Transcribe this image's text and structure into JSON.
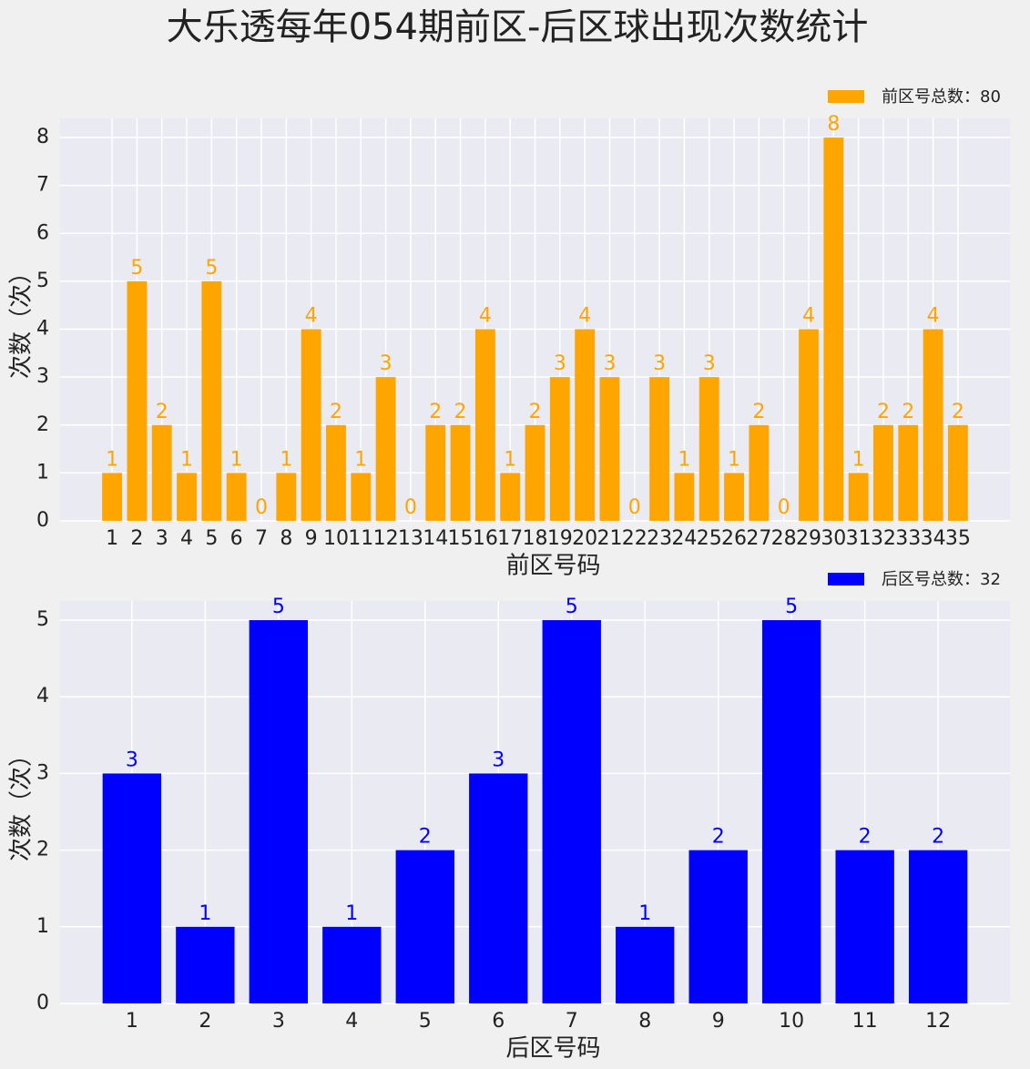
{
  "title": "大乐透每年054期前区-后区球出现次数统计",
  "chart_data": [
    {
      "type": "bar",
      "xlabel": "前区号码",
      "ylabel": "次数（次）",
      "categories": [
        "1",
        "2",
        "3",
        "4",
        "5",
        "6",
        "7",
        "8",
        "9",
        "10",
        "11",
        "12",
        "13",
        "14",
        "15",
        "16",
        "17",
        "18",
        "19",
        "20",
        "21",
        "22",
        "23",
        "24",
        "25",
        "26",
        "27",
        "28",
        "29",
        "30",
        "31",
        "32",
        "33",
        "34",
        "35"
      ],
      "series": [
        {
          "name": "前区号总数：80",
          "color": "#ffa500",
          "values": [
            1,
            5,
            2,
            1,
            5,
            1,
            0,
            1,
            4,
            2,
            1,
            3,
            0,
            2,
            2,
            4,
            1,
            2,
            3,
            4,
            3,
            0,
            3,
            1,
            3,
            1,
            2,
            0,
            4,
            8,
            1,
            2,
            2,
            4,
            2
          ]
        }
      ],
      "ylim": [
        0,
        8.4
      ],
      "yticks": [
        0,
        1,
        2,
        3,
        4,
        5,
        6,
        7,
        8
      ],
      "grid": true,
      "legend": "upper right"
    },
    {
      "type": "bar",
      "xlabel": "后区号码",
      "ylabel": "次数（次）",
      "categories": [
        "1",
        "2",
        "3",
        "4",
        "5",
        "6",
        "7",
        "8",
        "9",
        "10",
        "11",
        "12"
      ],
      "series": [
        {
          "name": "后区号总数：32",
          "color": "#0000ff",
          "values": [
            3,
            1,
            5,
            1,
            2,
            3,
            5,
            1,
            2,
            5,
            2,
            2
          ]
        }
      ],
      "ylim": [
        0,
        5.25
      ],
      "yticks": [
        0,
        1,
        2,
        3,
        4,
        5
      ],
      "grid": true,
      "legend": "upper right"
    }
  ]
}
